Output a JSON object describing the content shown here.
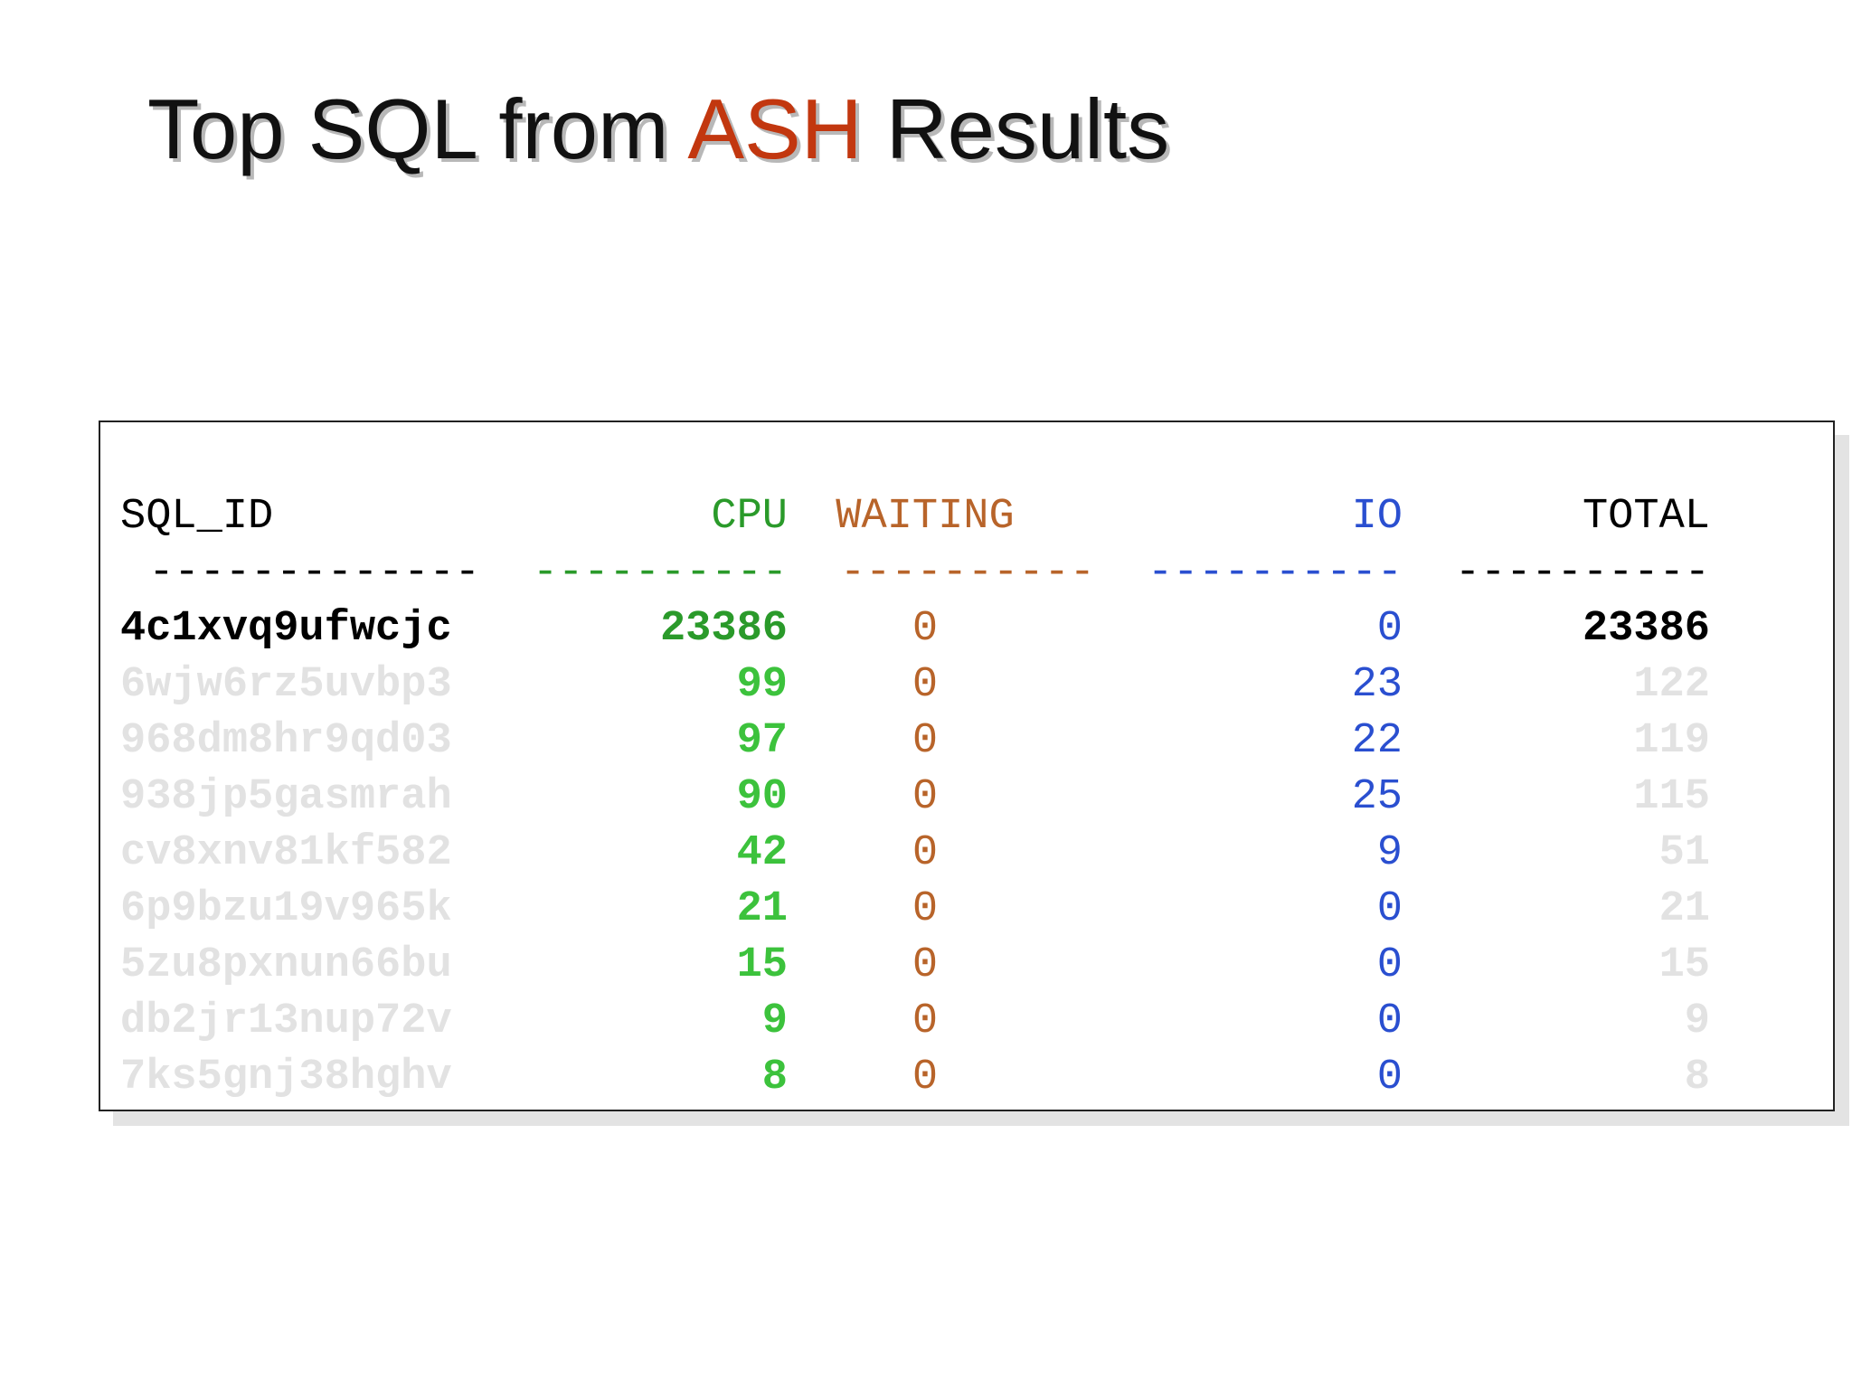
{
  "slide": {
    "title_part1": "Top SQL from ",
    "title_accent": "ASH",
    "title_part2": " Results",
    "accent_color": "#c2370f"
  },
  "table": {
    "headers": [
      "SQL_ID",
      "CPU",
      "WAITING",
      "IO",
      "TOTAL"
    ],
    "separators": [
      "-------------",
      "----------",
      "----------",
      "----------",
      "----------"
    ],
    "column_colors": {
      "sql_id": "#000000",
      "cpu": "#2a9a2a",
      "waiting": "#b8642a",
      "io": "#2a4fd0",
      "total": "#000000"
    },
    "rows": [
      {
        "sql_id": "4c1xvq9ufwcjc",
        "cpu": "23386",
        "waiting": "0",
        "io": "0",
        "total": "23386",
        "highlighted": true
      },
      {
        "sql_id": "6wjw6rz5uvbp3",
        "cpu": "99",
        "waiting": "0",
        "io": "23",
        "total": "122",
        "highlighted": false
      },
      {
        "sql_id": "968dm8hr9qd03",
        "cpu": "97",
        "waiting": "0",
        "io": "22",
        "total": "119",
        "highlighted": false
      },
      {
        "sql_id": "938jp5gasmrah",
        "cpu": "90",
        "waiting": "0",
        "io": "25",
        "total": "115",
        "highlighted": false
      },
      {
        "sql_id": "cv8xnv81kf582",
        "cpu": "42",
        "waiting": "0",
        "io": "9",
        "total": "51",
        "highlighted": false
      },
      {
        "sql_id": "6p9bzu19v965k",
        "cpu": "21",
        "waiting": "0",
        "io": "0",
        "total": "21",
        "highlighted": false
      },
      {
        "sql_id": "5zu8pxnun66bu",
        "cpu": "15",
        "waiting": "0",
        "io": "0",
        "total": "15",
        "highlighted": false
      },
      {
        "sql_id": "db2jr13nup72v",
        "cpu": "9",
        "waiting": "0",
        "io": "0",
        "total": "9",
        "highlighted": false
      },
      {
        "sql_id": "7ks5gnj38hghv",
        "cpu": "8",
        "waiting": "0",
        "io": "0",
        "total": "8",
        "highlighted": false
      }
    ]
  }
}
